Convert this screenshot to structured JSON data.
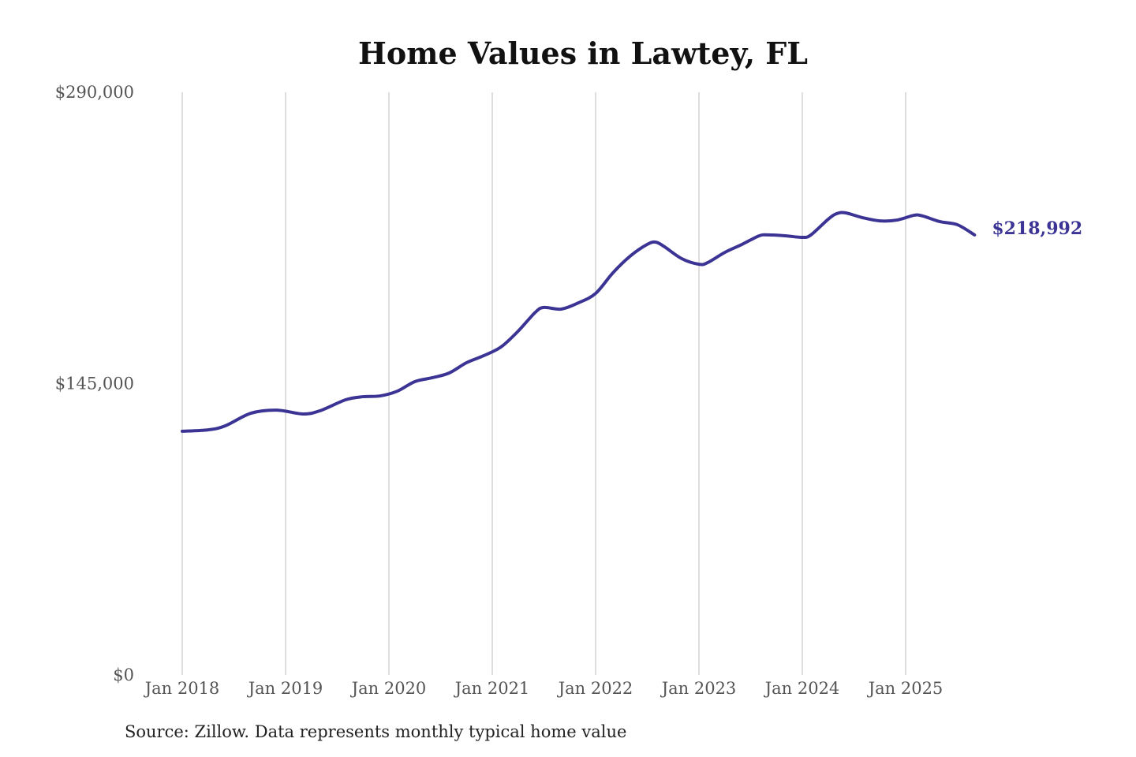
{
  "chart_data": {
    "type": "line",
    "title": "Home Values in Lawtey, FL",
    "xlabel": "",
    "ylabel": "",
    "ylim": [
      0,
      290000
    ],
    "y_ticks": [
      0,
      145000,
      290000
    ],
    "y_tick_labels": [
      "$0",
      "$145,000",
      "$290,000"
    ],
    "x_tick_labels": [
      "Jan 2018",
      "Jan 2019",
      "Jan 2020",
      "Jan 2021",
      "Jan 2022",
      "Jan 2023",
      "Jan 2024",
      "Jan 2025"
    ],
    "grid": "vertical lines at each January",
    "legend": "none",
    "line_color": "#3b3494",
    "end_label": "$218,992",
    "series": [
      {
        "x": [
          "2018-01",
          "2018-04",
          "2018-06",
          "2018-09",
          "2018-12",
          "2019-03",
          "2019-05",
          "2019-08",
          "2019-10",
          "2019-12",
          "2020-02",
          "2020-04",
          "2020-06",
          "2020-08",
          "2020-10",
          "2020-12",
          "2021-02",
          "2021-04",
          "2021-06",
          "2021-07",
          "2021-09",
          "2021-11",
          "2022-01",
          "2022-03",
          "2022-05",
          "2022-07",
          "2022-08",
          "2022-09",
          "2022-11",
          "2023-01",
          "2023-02",
          "2023-04",
          "2023-06",
          "2023-08",
          "2023-09",
          "2023-11",
          "2024-01",
          "2024-02",
          "2024-04",
          "2024-05",
          "2024-06",
          "2024-08",
          "2024-10",
          "2024-12",
          "2025-02",
          "2025-03",
          "2025-05",
          "2025-07",
          "2025-09"
        ],
        "values": [
          121300,
          122000,
          124000,
          130300,
          131800,
          129900,
          131500,
          137000,
          138500,
          138900,
          141300,
          146000,
          147900,
          150300,
          155400,
          158900,
          163200,
          171100,
          180500,
          182900,
          182100,
          185200,
          189900,
          200100,
          208400,
          214300,
          215400,
          213100,
          207200,
          204400,
          205200,
          210300,
          214300,
          218600,
          219000,
          218600,
          217800,
          219000,
          226800,
          229600,
          230000,
          227600,
          226000,
          226400,
          228800,
          228400,
          225600,
          224100,
          218992
        ]
      }
    ]
  },
  "footer": {
    "source": "Source: Zillow. Data represents monthly typical home value"
  }
}
